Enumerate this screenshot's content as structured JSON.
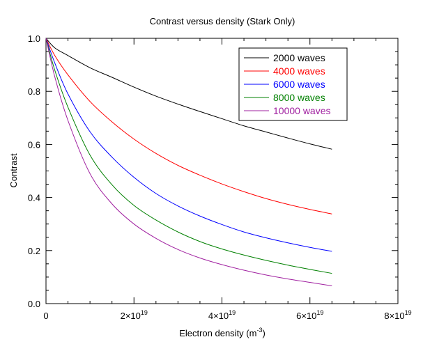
{
  "chart_data": {
    "type": "line",
    "title": "Contrast versus density (Stark Only)",
    "xlabel": {
      "prefix": "Electron density (m",
      "sup": "-3",
      "suffix": ")"
    },
    "ylabel": "Contrast",
    "xlim": [
      0,
      8e+19
    ],
    "ylim": [
      0,
      1.0
    ],
    "x_ticks": [
      {
        "value": 0,
        "label": "0",
        "sup": ""
      },
      {
        "value": 2e+19,
        "label": "2×10",
        "sup": "19"
      },
      {
        "value": 4e+19,
        "label": "4×10",
        "sup": "19"
      },
      {
        "value": 6e+19,
        "label": "6×10",
        "sup": "19"
      },
      {
        "value": 8e+19,
        "label": "8×10",
        "sup": "19"
      }
    ],
    "y_ticks": [
      {
        "value": 0.0,
        "label": "0.0"
      },
      {
        "value": 0.2,
        "label": "0.2"
      },
      {
        "value": 0.4,
        "label": "0.4"
      },
      {
        "value": 0.6,
        "label": "0.6"
      },
      {
        "value": 0.8,
        "label": "0.8"
      },
      {
        "value": 1.0,
        "label": "1.0"
      }
    ],
    "grid": false,
    "legend_position": "top-right",
    "x": [
      0,
      2e+18,
      5e+18,
      1e+19,
      1.5e+19,
      2e+19,
      2.5e+19,
      3e+19,
      3.5e+19,
      4e+19,
      4.5e+19,
      5e+19,
      5.5e+19,
      6e+19,
      6.5e+19
    ],
    "series": [
      {
        "name": "2000 waves",
        "color": "#000000",
        "values": [
          1.0,
          0.964,
          0.935,
          0.889,
          0.853,
          0.816,
          0.782,
          0.752,
          0.724,
          0.697,
          0.67,
          0.647,
          0.624,
          0.602,
          0.582
        ]
      },
      {
        "name": "4000 waves",
        "color": "#ff0000",
        "values": [
          1.0,
          0.935,
          0.862,
          0.762,
          0.685,
          0.62,
          0.566,
          0.521,
          0.484,
          0.451,
          0.422,
          0.396,
          0.374,
          0.355,
          0.338
        ]
      },
      {
        "name": "6000 waves",
        "color": "#0000ff",
        "values": [
          1.0,
          0.907,
          0.79,
          0.648,
          0.552,
          0.476,
          0.415,
          0.368,
          0.33,
          0.298,
          0.27,
          0.248,
          0.229,
          0.212,
          0.197
        ]
      },
      {
        "name": "8000 waves",
        "color": "#008000",
        "values": [
          1.0,
          0.88,
          0.74,
          0.56,
          0.448,
          0.37,
          0.315,
          0.27,
          0.234,
          0.206,
          0.183,
          0.163,
          0.145,
          0.129,
          0.114
        ]
      },
      {
        "name": "10000 waves",
        "color": "#a020a0",
        "values": [
          1.0,
          0.855,
          0.69,
          0.49,
          0.376,
          0.3,
          0.246,
          0.204,
          0.172,
          0.147,
          0.126,
          0.108,
          0.093,
          0.08,
          0.067
        ]
      }
    ]
  }
}
